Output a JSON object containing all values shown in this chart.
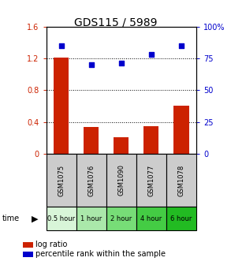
{
  "title": "GDS115 / 5989",
  "categories": [
    "GSM1075",
    "GSM1076",
    "GSM1090",
    "GSM1077",
    "GSM1078"
  ],
  "time_labels": [
    "0.5 hour",
    "1 hour",
    "2 hour",
    "4 hour",
    "6 hour"
  ],
  "log_ratio": [
    1.21,
    0.34,
    0.21,
    0.35,
    0.6
  ],
  "percentile_rank": [
    85,
    70,
    71,
    78,
    85
  ],
  "bar_color": "#cc2200",
  "dot_color": "#0000cc",
  "ylim_left": [
    0,
    1.6
  ],
  "ylim_right": [
    0,
    100
  ],
  "yticks_left": [
    0,
    0.4,
    0.8,
    1.2,
    1.6
  ],
  "ytick_labels_left": [
    "0",
    "0.4",
    "0.8",
    "1.2",
    "1.6"
  ],
  "yticks_right": [
    0,
    25,
    50,
    75,
    100
  ],
  "ytick_labels_right": [
    "0",
    "25",
    "50",
    "75",
    "100%"
  ],
  "hlines": [
    0.4,
    0.8,
    1.2
  ],
  "time_bg_colors": [
    "#d8f5d8",
    "#aae8aa",
    "#77dd77",
    "#44cc44",
    "#22bb22"
  ],
  "header_bg": "#cccccc",
  "legend_log_ratio": "log ratio",
  "legend_percentile": "percentile rank within the sample",
  "title_fontsize": 10,
  "tick_fontsize": 7,
  "time_fontsize": 6,
  "gsm_fontsize": 6,
  "legend_fontsize": 7,
  "bar_width": 0.5
}
